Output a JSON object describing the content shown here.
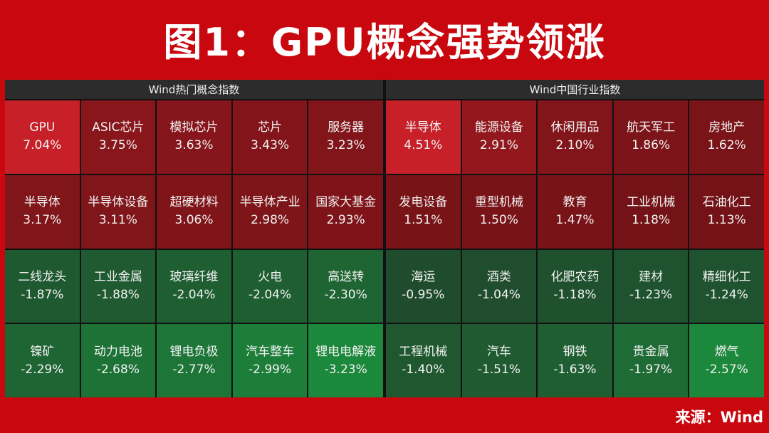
{
  "title": "图1：GPU概念强势领涨",
  "panels": [
    {
      "header": "Wind热门概念指数",
      "tiles": [
        {
          "name": "GPU",
          "change": "7.04%"
        },
        {
          "name": "ASIC芯片",
          "change": "3.75%"
        },
        {
          "name": "模拟芯片",
          "change": "3.63%"
        },
        {
          "name": "芯片",
          "change": "3.43%"
        },
        {
          "name": "服务器",
          "change": "3.23%"
        },
        {
          "name": "半导体",
          "change": "3.17%"
        },
        {
          "name": "半导体设备",
          "change": "3.11%"
        },
        {
          "name": "超硬材料",
          "change": "3.06%"
        },
        {
          "name": "半导体产业",
          "change": "2.98%"
        },
        {
          "name": "国家大基金",
          "change": "2.93%"
        },
        {
          "name": "二线龙头",
          "change": "-1.87%"
        },
        {
          "name": "工业金属",
          "change": "-1.88%"
        },
        {
          "name": "玻璃纤维",
          "change": "-2.04%"
        },
        {
          "name": "火电",
          "change": "-2.04%"
        },
        {
          "name": "高送转",
          "change": "-2.30%"
        },
        {
          "name": "镍矿",
          "change": "-2.29%"
        },
        {
          "name": "动力电池",
          "change": "-2.68%"
        },
        {
          "name": "锂电负极",
          "change": "-2.77%"
        },
        {
          "name": "汽车整车",
          "change": "-2.99%"
        },
        {
          "name": "锂电电解液",
          "change": "-3.23%"
        }
      ]
    },
    {
      "header": "Wind中国行业指数",
      "tiles": [
        {
          "name": "半导体",
          "change": "4.51%"
        },
        {
          "name": "能源设备",
          "change": "2.91%"
        },
        {
          "name": "休闲用品",
          "change": "2.10%"
        },
        {
          "name": "航天军工",
          "change": "1.86%"
        },
        {
          "name": "房地产",
          "change": "1.62%"
        },
        {
          "name": "发电设备",
          "change": "1.51%"
        },
        {
          "name": "重型机械",
          "change": "1.50%"
        },
        {
          "name": "教育",
          "change": "1.47%"
        },
        {
          "name": "工业机械",
          "change": "1.18%"
        },
        {
          "name": "石油化工",
          "change": "1.13%"
        },
        {
          "name": "海运",
          "change": "-0.95%"
        },
        {
          "name": "酒类",
          "change": "-1.04%"
        },
        {
          "name": "化肥农药",
          "change": "-1.18%"
        },
        {
          "name": "建材",
          "change": "-1.23%"
        },
        {
          "name": "精细化工",
          "change": "-1.24%"
        },
        {
          "name": "工程机械",
          "change": "-1.40%"
        },
        {
          "name": "汽车",
          "change": "-1.51%"
        },
        {
          "name": "钢铁",
          "change": "-1.63%"
        },
        {
          "name": "贵金属",
          "change": "-1.97%"
        },
        {
          "name": "燃气",
          "change": "-2.57%"
        }
      ]
    }
  ],
  "source": "来源：Wind"
}
